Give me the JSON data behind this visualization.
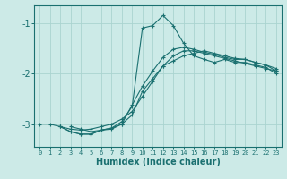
{
  "xlabel": "Humidex (Indice chaleur)",
  "bg_color": "#cceae7",
  "grid_color_major": "#aad4d0",
  "grid_color_minor": "#bbdeda",
  "line_color": "#1a7070",
  "xlim": [
    -0.5,
    23.5
  ],
  "ylim": [
    -3.45,
    -0.65
  ],
  "yticks": [
    -3,
    -2,
    -1
  ],
  "xticks": [
    0,
    1,
    2,
    3,
    4,
    5,
    6,
    7,
    8,
    9,
    10,
    11,
    12,
    13,
    14,
    15,
    16,
    17,
    18,
    19,
    20,
    21,
    22,
    23
  ],
  "series": [
    {
      "x": [
        0,
        1,
        2,
        3,
        4,
        5,
        6,
        7,
        8,
        9,
        10,
        11,
        12,
        13,
        14,
        15,
        16,
        17,
        18,
        19,
        20,
        21,
        22,
        23
      ],
      "y": [
        -3.0,
        -3.0,
        -3.05,
        -3.1,
        -3.12,
        -3.1,
        -3.05,
        -3.0,
        -2.9,
        -2.75,
        -2.45,
        -2.15,
        -1.85,
        -1.65,
        -1.55,
        -1.55,
        -1.6,
        -1.65,
        -1.7,
        -1.75,
        -1.8,
        -1.85,
        -1.9,
        -1.95
      ]
    },
    {
      "x": [
        3,
        4,
        5,
        6,
        7,
        8,
        9,
        10,
        11,
        12,
        13,
        14,
        15,
        16,
        17,
        18,
        19,
        20,
        21,
        22,
        23
      ],
      "y": [
        -3.05,
        -3.1,
        -3.15,
        -3.12,
        -3.08,
        -3.0,
        -2.82,
        -2.35,
        -2.1,
        -1.85,
        -1.75,
        -1.65,
        -1.6,
        -1.55,
        -1.6,
        -1.65,
        -1.7,
        -1.72,
        -1.78,
        -1.83,
        -1.9
      ]
    },
    {
      "x": [
        2,
        3,
        4,
        5,
        6,
        7,
        8,
        9,
        10,
        11,
        12,
        13,
        14,
        15,
        16,
        17,
        18,
        19,
        20,
        21,
        22,
        23
      ],
      "y": [
        -3.05,
        -3.15,
        -3.2,
        -3.2,
        -3.12,
        -3.08,
        -2.95,
        -2.65,
        -1.1,
        -1.05,
        -0.85,
        -1.05,
        -1.4,
        -1.65,
        -1.72,
        -1.78,
        -1.72,
        -1.78,
        -1.78,
        -1.83,
        -1.88,
        -2.0
      ]
    },
    {
      "x": [
        2,
        3,
        4,
        5,
        6,
        7,
        8,
        9,
        10,
        11,
        12,
        13,
        14,
        15,
        16,
        17,
        18,
        19,
        20,
        21,
        22,
        23
      ],
      "y": [
        -3.05,
        -3.15,
        -3.2,
        -3.2,
        -3.12,
        -3.1,
        -3.0,
        -2.62,
        -2.25,
        -1.95,
        -1.68,
        -1.52,
        -1.48,
        -1.52,
        -1.58,
        -1.62,
        -1.68,
        -1.72,
        -1.72,
        -1.78,
        -1.83,
        -1.95
      ]
    }
  ]
}
